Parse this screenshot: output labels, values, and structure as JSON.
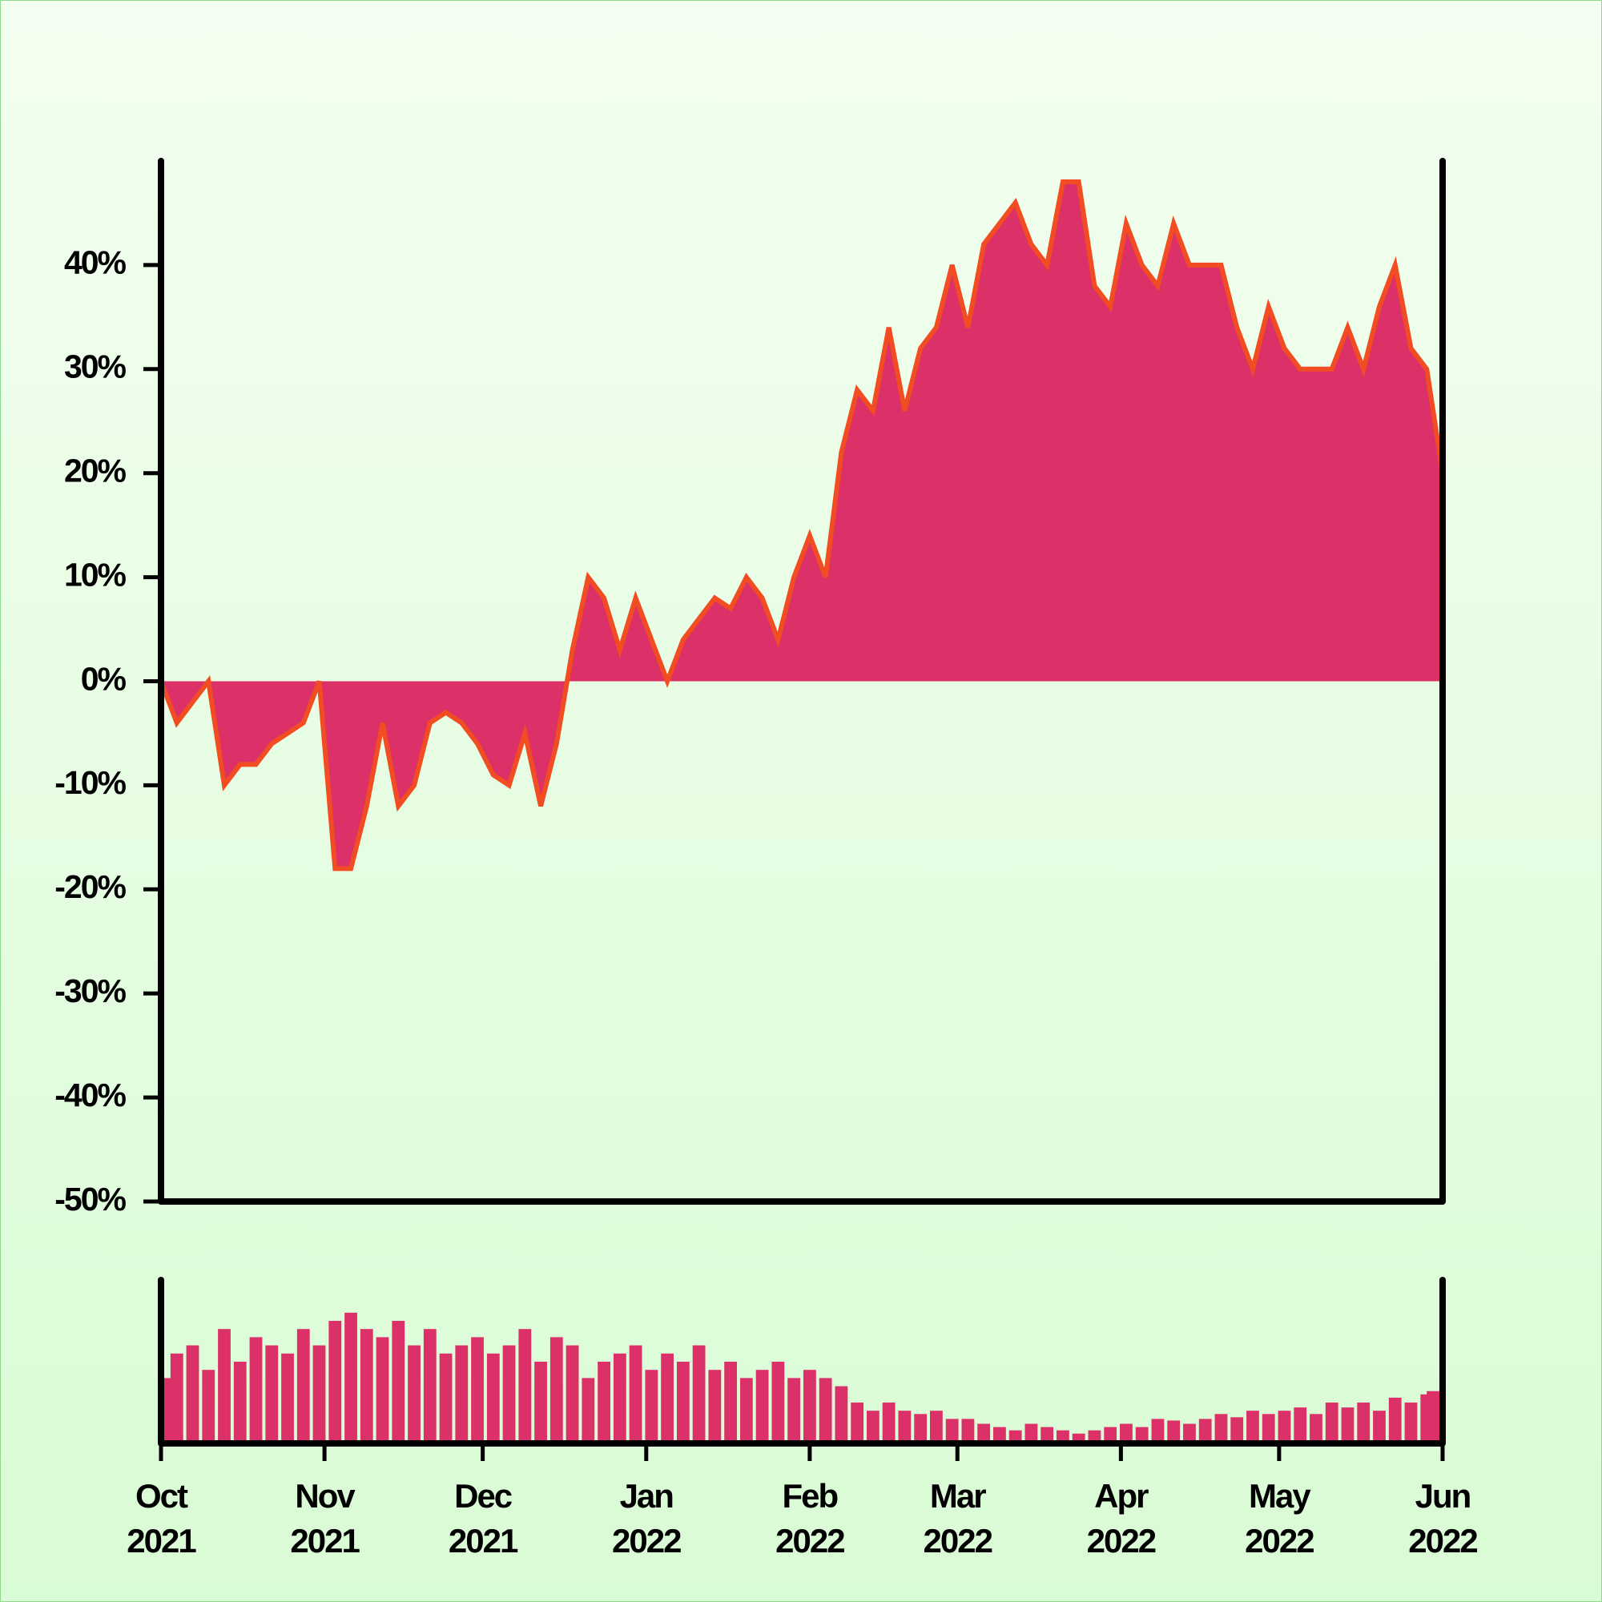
{
  "chart_data": [
    {
      "type": "area",
      "x": [
        0,
        3,
        6,
        9,
        12,
        15,
        18,
        21,
        24,
        27,
        30,
        33,
        36,
        39,
        42,
        45,
        48,
        51,
        54,
        57,
        60,
        63,
        66,
        69,
        72,
        75,
        78,
        81,
        84,
        87,
        90,
        93,
        96,
        99,
        102,
        105,
        108,
        111,
        114,
        117,
        120,
        123,
        126,
        129,
        132,
        135,
        138,
        141,
        144,
        147,
        150,
        153,
        156,
        159,
        162,
        165,
        168,
        171,
        174,
        177,
        180,
        183,
        186,
        189,
        192,
        195,
        198,
        201,
        204,
        207,
        210,
        213,
        216,
        219,
        222,
        225,
        228,
        231,
        234,
        237,
        240,
        243
      ],
      "values": [
        0,
        -4,
        -2,
        0,
        -10,
        -8,
        -8,
        -6,
        -5,
        -4,
        0,
        -18,
        -18,
        -12,
        -4,
        -12,
        -10,
        -4,
        -3,
        -4,
        -6,
        -9,
        -10,
        -5,
        -12,
        -6,
        3,
        10,
        8,
        3,
        8,
        4,
        0,
        4,
        6,
        8,
        7,
        10,
        8,
        4,
        10,
        14,
        10,
        22,
        28,
        26,
        34,
        26,
        32,
        34,
        40,
        34,
        42,
        44,
        46,
        42,
        40,
        48,
        48,
        38,
        36,
        44,
        40,
        38,
        44,
        40,
        40,
        40,
        34,
        30,
        36,
        32,
        30,
        30,
        30,
        34,
        30,
        36,
        40,
        32,
        30,
        20
      ],
      "xlim": [
        0,
        243
      ],
      "ylim": [
        -50,
        50
      ],
      "yticks": [
        {
          "value": -50,
          "label": "-50%"
        },
        {
          "value": -40,
          "label": "-40%"
        },
        {
          "value": -30,
          "label": "-30%"
        },
        {
          "value": -20,
          "label": "-20%"
        },
        {
          "value": -10,
          "label": "-10%"
        },
        {
          "value": 0,
          "label": "0%"
        },
        {
          "value": 10,
          "label": "10%"
        },
        {
          "value": 20,
          "label": "20%"
        },
        {
          "value": 30,
          "label": "30%"
        },
        {
          "value": 40,
          "label": "40%"
        }
      ],
      "color": "#dc3068",
      "line_color": "#f24c22"
    },
    {
      "type": "bar",
      "x": [
        0,
        3,
        6,
        9,
        12,
        15,
        18,
        21,
        24,
        27,
        30,
        33,
        36,
        39,
        42,
        45,
        48,
        51,
        54,
        57,
        60,
        63,
        66,
        69,
        72,
        75,
        78,
        81,
        84,
        87,
        90,
        93,
        96,
        99,
        102,
        105,
        108,
        111,
        114,
        117,
        120,
        123,
        126,
        129,
        132,
        135,
        138,
        141,
        144,
        147,
        150,
        153,
        156,
        159,
        162,
        165,
        168,
        171,
        174,
        177,
        180,
        183,
        186,
        189,
        192,
        195,
        198,
        201,
        204,
        207,
        210,
        213,
        216,
        219,
        222,
        225,
        228,
        231,
        234,
        237,
        240,
        243
      ],
      "values": [
        40,
        55,
        60,
        45,
        70,
        50,
        65,
        60,
        55,
        70,
        60,
        75,
        80,
        70,
        65,
        75,
        60,
        70,
        55,
        60,
        65,
        55,
        60,
        70,
        50,
        65,
        60,
        40,
        50,
        55,
        60,
        45,
        55,
        50,
        60,
        45,
        50,
        40,
        45,
        50,
        40,
        45,
        40,
        35,
        25,
        20,
        25,
        20,
        18,
        20,
        15,
        15,
        12,
        10,
        8,
        12,
        10,
        8,
        6,
        8,
        10,
        12,
        10,
        15,
        14,
        12,
        15,
        18,
        16,
        20,
        18,
        20,
        22,
        18,
        25,
        22,
        25,
        20,
        28,
        25,
        30,
        32
      ],
      "xlim": [
        0,
        243
      ],
      "ylim": [
        0,
        100
      ],
      "xticks": [
        {
          "value": 0,
          "label": "Oct 2021"
        },
        {
          "value": 31,
          "label": "Nov 2021"
        },
        {
          "value": 61,
          "label": "Dec 2021"
        },
        {
          "value": 92,
          "label": "Jan 2022"
        },
        {
          "value": 123,
          "label": "Feb 2022"
        },
        {
          "value": 151,
          "label": "Mar 2022"
        },
        {
          "value": 182,
          "label": "Apr 2022"
        },
        {
          "value": 212,
          "label": "May 2022"
        },
        {
          "value": 243,
          "label": "Jun 2022"
        }
      ],
      "color": "#dc3068"
    }
  ]
}
